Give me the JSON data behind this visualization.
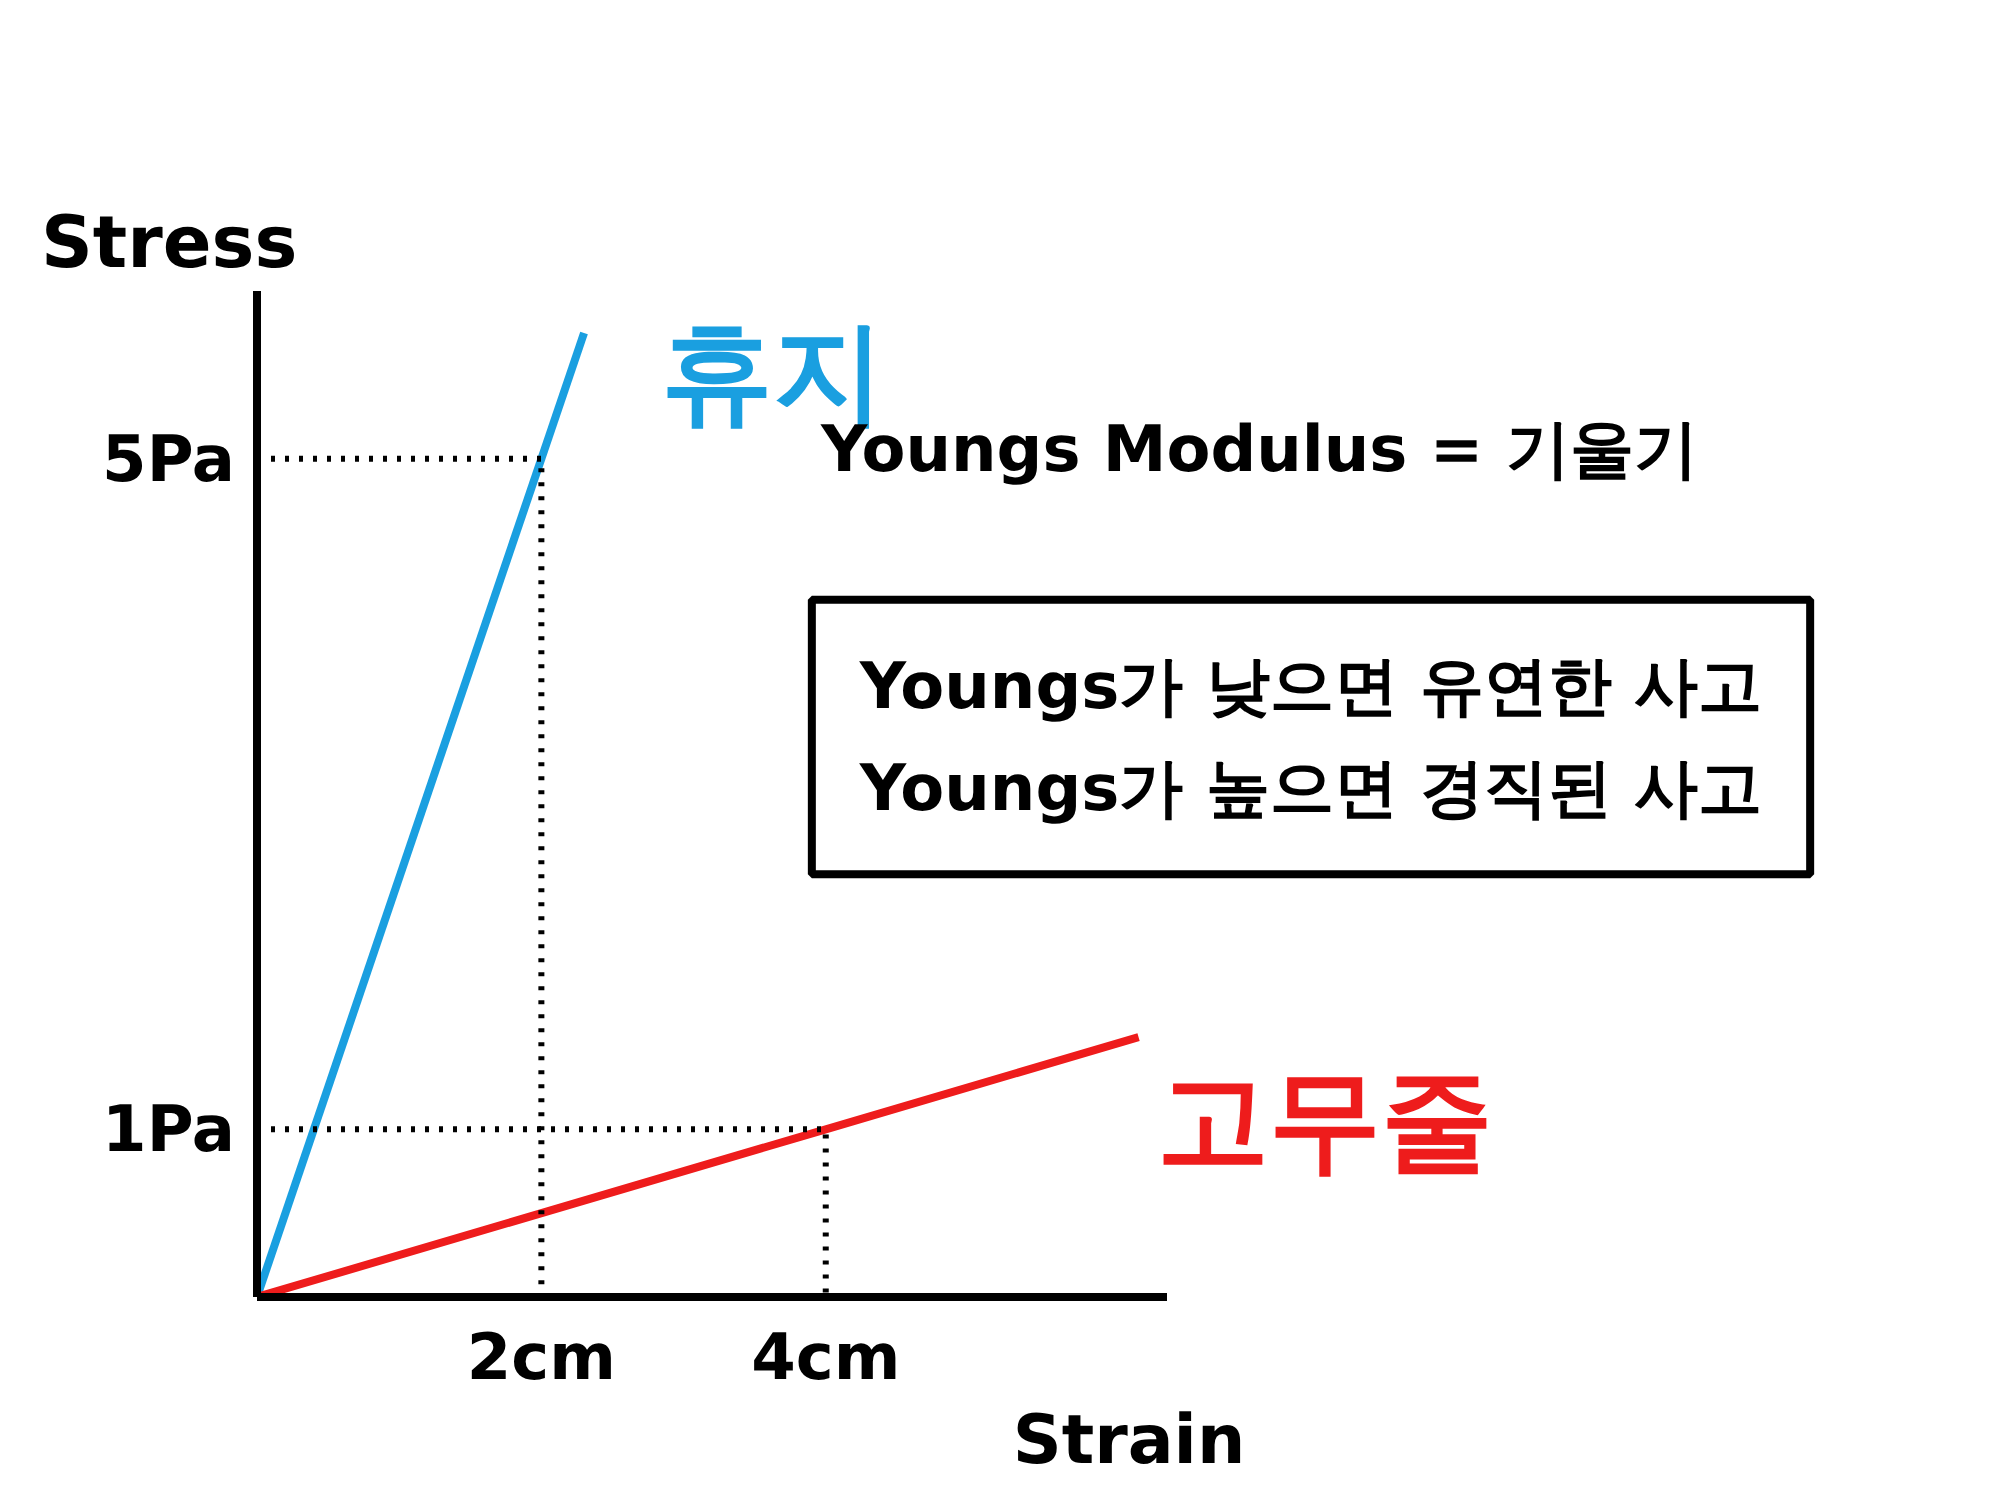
{
  "chart_data": {
    "type": "line",
    "xlabel": "Strain",
    "ylabel": "Stress",
    "xlim": [
      0,
      6.4
    ],
    "ylim": [
      0,
      6
    ],
    "xticks": [
      {
        "value": 2,
        "label": "2cm"
      },
      {
        "value": 4,
        "label": "4cm"
      }
    ],
    "yticks": [
      {
        "value": 1,
        "label": "1Pa"
      },
      {
        "value": 5,
        "label": "5Pa"
      }
    ],
    "grid": false,
    "legend": false,
    "marker": "none",
    "series": [
      {
        "name": "휴지",
        "color": "#1a9fe0",
        "x": [
          0,
          2,
          2.3
        ],
        "values": [
          0,
          5,
          5.75
        ]
      },
      {
        "name": "고무줄",
        "color": "#ee1c1c",
        "x": [
          0,
          4,
          6.2
        ],
        "values": [
          0,
          1,
          1.55
        ]
      },
      {
        "color": "#000000",
        "line_style": "dotted",
        "x": [
          0,
          2,
          2
        ],
        "values": [
          5,
          5,
          0
        ]
      },
      {
        "color": "#000000",
        "line_style": "dotted",
        "x": [
          0,
          4,
          4
        ],
        "values": [
          1,
          1,
          0
        ]
      }
    ],
    "annotations": [
      "Youngs Modulus = 기울기",
      "Youngs가 낮으면 유연한 사고\nYoungs가 높으면 경직된 사고"
    ]
  }
}
